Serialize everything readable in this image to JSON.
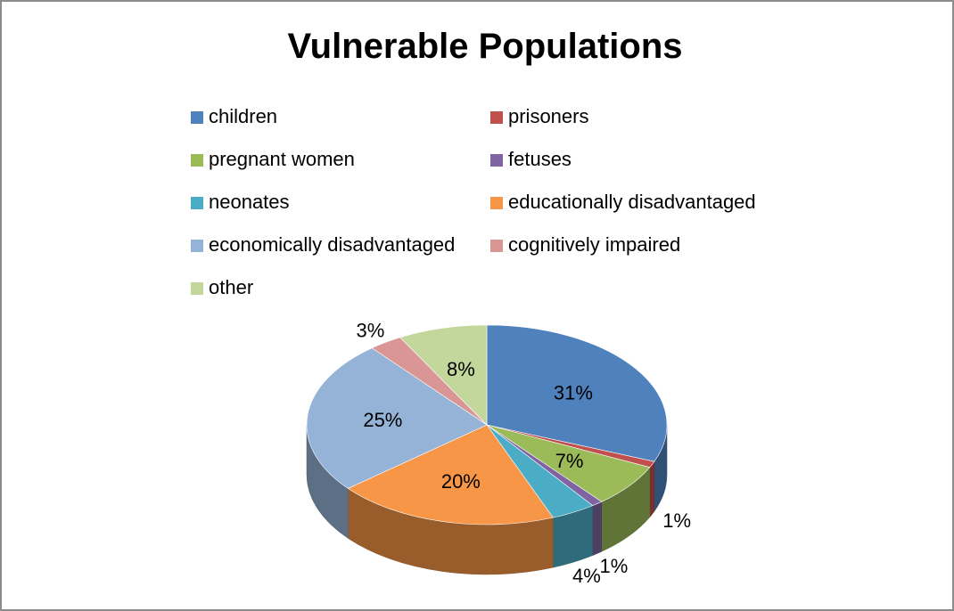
{
  "chart_data": {
    "type": "pie",
    "title": "Vulnerable Populations",
    "legend_position": "top",
    "slices": [
      {
        "label": "children",
        "value": 31,
        "display": "31%",
        "color": "#4F81BD"
      },
      {
        "label": "prisoners",
        "value": 1,
        "display": "1%",
        "color": "#C0504D"
      },
      {
        "label": "pregnant women",
        "value": 7,
        "display": "7%",
        "color": "#9BBB59"
      },
      {
        "label": "fetuses",
        "value": 1,
        "display": "1%",
        "color": "#8064A2"
      },
      {
        "label": "neonates",
        "value": 4,
        "display": "4%",
        "color": "#4BACC6"
      },
      {
        "label": "educationally disadvantaged",
        "value": 20,
        "display": "20%",
        "color": "#F79646"
      },
      {
        "label": "economically disadvantaged",
        "value": 25,
        "display": "25%",
        "color": "#95B3D7"
      },
      {
        "label": "cognitively impaired",
        "value": 3,
        "display": "3%",
        "color": "#D99694"
      },
      {
        "label": "other",
        "value": 8,
        "display": "8%",
        "color": "#C3D69B"
      }
    ]
  }
}
